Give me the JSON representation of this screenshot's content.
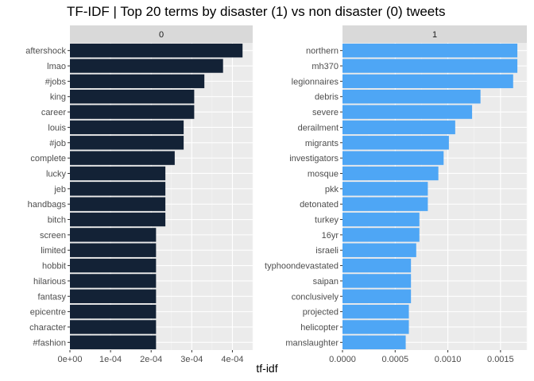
{
  "chart_data": {
    "type": "bar",
    "orientation": "horizontal",
    "title": "TF-IDF | Top 20 terms by disaster (1) vs non disaster (0) tweets",
    "xlabel": "tf-idf",
    "ylabel": "",
    "grid": true,
    "legend": "none",
    "panels": [
      {
        "strip": "0",
        "color": "#132236",
        "xlim": [
          0,
          0.00045
        ],
        "ticks": [
          0,
          0.0001,
          0.0002,
          0.0003,
          0.0004
        ],
        "tick_labels": [
          "0e+00",
          "1e-04",
          "2e-04",
          "3e-04",
          "4e-04"
        ],
        "categories": [
          "aftershock",
          "lmao",
          "#jobs",
          "king",
          "career",
          "louis",
          "#job",
          "complete",
          "lucky",
          "jeb",
          "handbags",
          "bitch",
          "screen",
          "limited",
          "hobbit",
          "hilarious",
          "fantasy",
          "epicentre",
          "character",
          "#fashion"
        ],
        "values": [
          0.000425,
          0.000377,
          0.000331,
          0.000306,
          0.000306,
          0.00028,
          0.00028,
          0.000258,
          0.000235,
          0.000235,
          0.000235,
          0.000235,
          0.000212,
          0.000212,
          0.000212,
          0.000212,
          0.000212,
          0.000212,
          0.000212,
          0.000212
        ]
      },
      {
        "strip": "1",
        "color": "#4ea6f5",
        "xlim": [
          0,
          0.00175
        ],
        "ticks": [
          0,
          0.0005,
          0.001,
          0.0015
        ],
        "tick_labels": [
          "0.0000",
          "0.0005",
          "0.0010",
          "0.0015"
        ],
        "categories": [
          "northern",
          "mh370",
          "legionnaires",
          "debris",
          "severe",
          "derailment",
          "migrants",
          "investigators",
          "mosque",
          "pkk",
          "detonated",
          "turkey",
          "16yr",
          "israeli",
          "typhoondevastated",
          "saipan",
          "conclusively",
          "projected",
          "helicopter",
          "manslaughter"
        ],
        "values": [
          0.00166,
          0.00166,
          0.00162,
          0.00131,
          0.00123,
          0.00107,
          0.00101,
          0.00096,
          0.00091,
          0.00081,
          0.00081,
          0.00073,
          0.00073,
          0.0007,
          0.00065,
          0.00065,
          0.00065,
          0.00063,
          0.00063,
          0.0006
        ]
      }
    ]
  }
}
